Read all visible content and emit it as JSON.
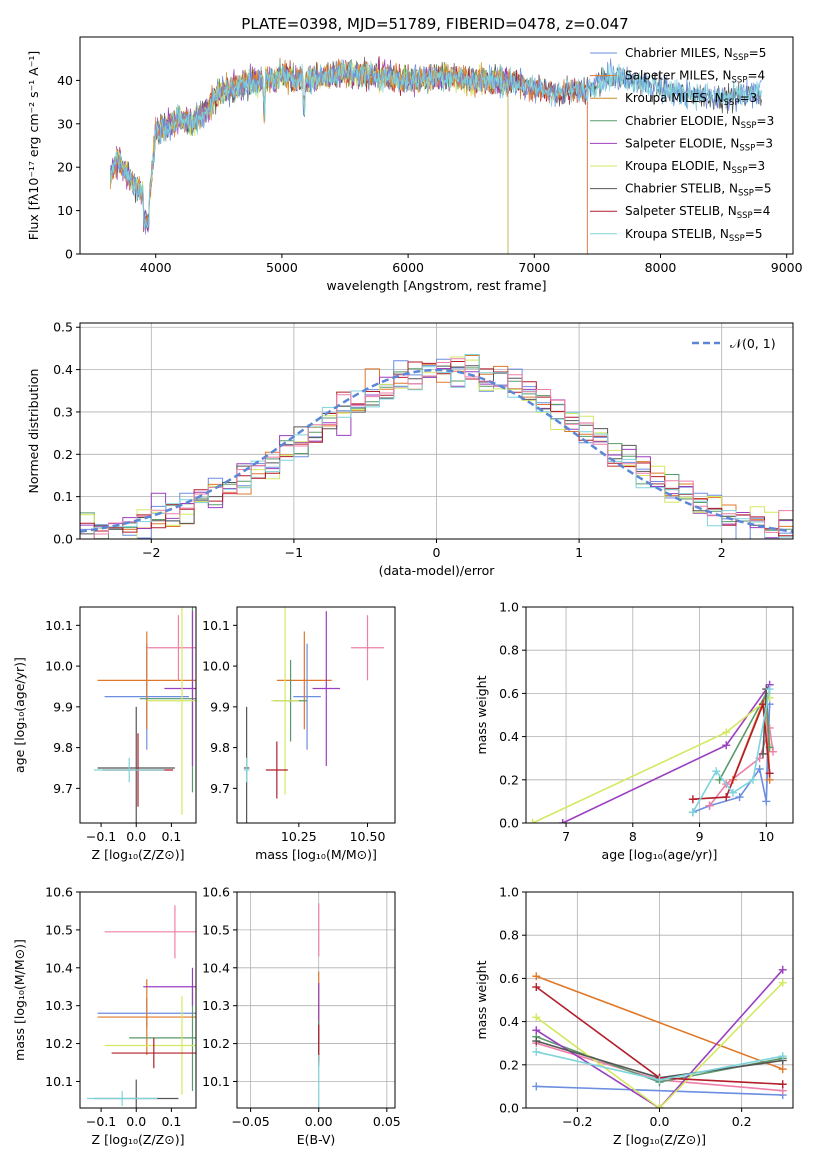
{
  "colors": {
    "palette": [
      "#6b8ee0",
      "#e0782a",
      "#c88a2e",
      "#5a9a6a",
      "#9b3fc0",
      "#d4e860",
      "#555555",
      "#b21e2a",
      "#7fd4dc"
    ],
    "extra": [
      "#ee7fa8"
    ],
    "normal_curve": "#5b87d6"
  },
  "chart_data": [
    {
      "type": "line",
      "title": "PLATE=0398, MJD=51789, FIBERID=0478, z=0.047",
      "xlabel": "wavelength [Angstrom, rest frame]",
      "ylabel": "Flux [fλ10⁻¹⁷ erg cm⁻² s⁻¹ A⁻¹]",
      "xlim": [
        3400,
        9050
      ],
      "ylim": [
        0,
        50
      ],
      "xticks": [
        4000,
        5000,
        6000,
        7000,
        8000,
        9000
      ],
      "yticks": [
        0,
        10,
        20,
        30,
        40
      ],
      "legend": "top-right",
      "series": [
        {
          "name": "Chabrier MILES, Nₛₚₚ=5",
          "legend_main": "Chabrier MILES, N",
          "legend_sub": "SSP",
          "legend_tail": "=5",
          "x_range": [
            3640,
            8800
          ]
        },
        {
          "name": "Salpeter MILES, Nₛₚₚ=4",
          "legend_main": "Salpeter MILES, N",
          "legend_sub": "SSP",
          "legend_tail": "=4",
          "x_range": [
            3640,
            7420
          ]
        },
        {
          "name": "Kroupa MILES, Nₛₚₚ=3",
          "legend_main": "Kroupa MILES, N",
          "legend_sub": "SSP",
          "legend_tail": "=3",
          "x_range": [
            3640,
            6790
          ]
        },
        {
          "name": "Chabrier ELODIE, Nₛₚₚ=3",
          "legend_main": "Chabrier ELODIE, N",
          "legend_sub": "SSP",
          "legend_tail": "=3",
          "x_range": [
            3640,
            6790
          ]
        },
        {
          "name": "Salpeter ELODIE, Nₛₚₚ=3",
          "legend_main": "Salpeter ELODIE, N",
          "legend_sub": "SSP",
          "legend_tail": "=3",
          "x_range": [
            3640,
            6790
          ]
        },
        {
          "name": "Kroupa ELODIE, Nₛₚₚ=3",
          "legend_main": "Kroupa ELODIE, N",
          "legend_sub": "SSP",
          "legend_tail": "=3",
          "x_range": [
            3640,
            6790
          ]
        },
        {
          "name": "Chabrier STELIB, Nₛₚₚ=5",
          "legend_main": "Chabrier STELIB, N",
          "legend_sub": "SSP",
          "legend_tail": "=5",
          "x_range": [
            3640,
            8800
          ]
        },
        {
          "name": "Salpeter STELIB, Nₛₚₚ=4",
          "legend_main": "Salpeter STELIB, N",
          "legend_sub": "SSP",
          "legend_tail": "=4",
          "x_range": [
            3640,
            7420
          ]
        },
        {
          "name": "Kroupa STELIB, Nₛₚₚ=5",
          "legend_main": "Kroupa STELIB, N",
          "legend_sub": "SSP",
          "legend_tail": "=5",
          "x_range": [
            3640,
            8800
          ]
        }
      ],
      "continuum": {
        "wavelength": [
          3640,
          3700,
          3800,
          3900,
          3950,
          4000,
          4100,
          4200,
          4300,
          4400,
          4500,
          4700,
          5000,
          5200,
          5500,
          5800,
          6000,
          6300,
          6500,
          6700,
          6900,
          7000,
          7200,
          7400,
          7600,
          7800,
          8000,
          8200,
          8500,
          8800
        ],
        "flux": [
          18,
          22,
          17,
          14,
          13,
          28,
          30,
          31,
          30,
          33,
          37,
          39,
          41,
          40,
          42,
          41,
          40,
          41,
          40,
          40,
          39,
          38,
          37,
          38,
          41,
          40,
          38,
          37,
          36,
          37
        ]
      }
    },
    {
      "type": "line",
      "xlabel": "(data-model)/error",
      "ylabel": "Normed distribution",
      "xlim": [
        -2.5,
        2.5
      ],
      "ylim": [
        0,
        0.51
      ],
      "xticks": [
        -2,
        -1,
        0,
        1,
        2
      ],
      "yticks": [
        0.0,
        0.1,
        0.2,
        0.3,
        0.4,
        0.5
      ],
      "grid": true,
      "legend": "top-right",
      "normal_curve": {
        "label": "𝒩(0, 1)",
        "mean": 0,
        "sd": 1
      },
      "histogram_bin_width": 0.1,
      "histogram_centers": [
        -2.45,
        -2.35,
        -2.25,
        -2.15,
        -2.05,
        -1.95,
        -1.85,
        -1.75,
        -1.65,
        -1.55,
        -1.45,
        -1.35,
        -1.25,
        -1.15,
        -1.05,
        -0.95,
        -0.85,
        -0.75,
        -0.65,
        -0.55,
        -0.45,
        -0.35,
        -0.25,
        -0.15,
        -0.05,
        0.05,
        0.15,
        0.25,
        0.35,
        0.45,
        0.55,
        0.65,
        0.75,
        0.85,
        0.95,
        1.05,
        1.15,
        1.25,
        1.35,
        1.45,
        1.55,
        1.65,
        1.75,
        1.85,
        1.95,
        2.05,
        2.15,
        2.25,
        2.35,
        2.45
      ]
    },
    {
      "type": "scatter",
      "xlabel": "Z [log₁₀(Z/Z⊙)]",
      "ylabel": "age  [log₁₀(age/yr)]",
      "xlim": [
        -0.16,
        0.17
      ],
      "ylim": [
        9.615,
        10.145
      ],
      "xticks": [
        -0.1,
        0.0,
        0.1
      ],
      "yticks": [
        9.7,
        9.8,
        9.9,
        10.0,
        10.1
      ],
      "points": [
        {
          "x": 0.03,
          "y": 9.925,
          "xerr": 0.12,
          "yerr": 0.13,
          "color": 0
        },
        {
          "x": 0.03,
          "y": 9.965,
          "xerr": 0.14,
          "yerr": 0.12,
          "color": 1
        },
        {
          "x": 0.12,
          "y": 10.045,
          "xerr": 0.09,
          "yerr": 0.08,
          "color": 9
        },
        {
          "x": 0.16,
          "y": 9.92,
          "xerr": 0.15,
          "yerr": 0.23,
          "color": 3
        },
        {
          "x": 0.16,
          "y": 9.945,
          "xerr": 0.08,
          "yerr": 0.19,
          "color": 4
        },
        {
          "x": 0.13,
          "y": 9.915,
          "xerr": 0.1,
          "yerr": 0.28,
          "color": 5
        },
        {
          "x": 0.0,
          "y": 9.75,
          "xerr": 0.11,
          "yerr": 0.15,
          "color": 6
        },
        {
          "x": 0.005,
          "y": 9.745,
          "xerr": 0.1,
          "yerr": 0.09,
          "color": 7
        },
        {
          "x": -0.02,
          "y": 9.745,
          "xerr": 0.1,
          "yerr": 0.03,
          "color": 8
        }
      ]
    },
    {
      "type": "scatter",
      "xlabel": "mass [log₁₀(M/M⊙)]",
      "ylabel": "",
      "xlim": [
        10.025,
        10.6
      ],
      "ylim": [
        9.615,
        10.145
      ],
      "xticks": [
        10.25,
        10.5
      ],
      "yticks": [
        9.7,
        9.8,
        9.9,
        10.0,
        10.1
      ],
      "points": [
        {
          "x": 10.28,
          "y": 9.925,
          "xerr": 0.05,
          "yerr": 0.13,
          "color": 0
        },
        {
          "x": 10.27,
          "y": 9.965,
          "xerr": 0.1,
          "yerr": 0.12,
          "color": 1
        },
        {
          "x": 10.5,
          "y": 10.045,
          "xerr": 0.06,
          "yerr": 0.08,
          "color": 9
        },
        {
          "x": 10.22,
          "y": 9.915,
          "xerr": 0.06,
          "yerr": 0.1,
          "color": 3
        },
        {
          "x": 10.35,
          "y": 9.945,
          "xerr": 0.05,
          "yerr": 0.19,
          "color": 4
        },
        {
          "x": 10.2,
          "y": 9.915,
          "xerr": 0.05,
          "yerr": 0.23,
          "color": 5
        },
        {
          "x": 10.06,
          "y": 9.75,
          "xerr": 0.01,
          "yerr": 0.15,
          "color": 6
        },
        {
          "x": 10.17,
          "y": 9.745,
          "xerr": 0.04,
          "yerr": 0.07,
          "color": 7
        },
        {
          "x": 10.06,
          "y": 9.745,
          "xerr": 0.01,
          "yerr": 0.03,
          "color": 8
        }
      ]
    },
    {
      "type": "line",
      "xlabel": "age  [log₁₀(age/yr)]",
      "ylabel": "mass weight",
      "xlim": [
        6.4,
        10.4
      ],
      "ylim": [
        0,
        1.0
      ],
      "xticks": [
        7,
        8,
        9,
        10
      ],
      "yticks": [
        0.0,
        0.2,
        0.4,
        0.6,
        0.8,
        1.0
      ],
      "grid": true,
      "series": [
        {
          "color": 0,
          "x": [
            8.9,
            9.15,
            9.6,
            9.9,
            10.0,
            10.05
          ],
          "y": [
            0.05,
            0.08,
            0.12,
            0.25,
            0.1,
            0.55
          ]
        },
        {
          "color": 1,
          "x": [
            9.5,
            10.0,
            10.05
          ],
          "y": [
            0.2,
            0.6,
            0.2
          ]
        },
        {
          "color": 9,
          "x": [
            9.15,
            9.4,
            9.9,
            10.05,
            10.1
          ],
          "y": [
            0.08,
            0.18,
            0.3,
            0.44,
            0.33
          ]
        },
        {
          "color": 3,
          "x": [
            9.3,
            10.0,
            10.05
          ],
          "y": [
            0.2,
            0.6,
            0.35
          ]
        },
        {
          "color": 4,
          "x": [
            6.95,
            9.4,
            10.05
          ],
          "y": [
            0.0,
            0.36,
            0.64
          ]
        },
        {
          "color": 5,
          "x": [
            6.5,
            9.4,
            10.05
          ],
          "y": [
            0.0,
            0.42,
            0.58
          ]
        },
        {
          "color": 6,
          "x": [
            9.95,
            10.0
          ],
          "y": [
            0.32,
            0.62
          ]
        },
        {
          "color": 7,
          "x": [
            8.9,
            9.4,
            9.95,
            10.05
          ],
          "y": [
            0.11,
            0.12,
            0.55,
            0.23
          ]
        },
        {
          "color": 8,
          "x": [
            8.9,
            9.25,
            9.5,
            9.8,
            10.05
          ],
          "y": [
            0.05,
            0.24,
            0.14,
            0.2,
            0.62
          ]
        }
      ]
    },
    {
      "type": "scatter",
      "xlabel": "Z [log₁₀(Z/Z⊙)]",
      "ylabel": "mass [log₁₀(M/M⊙)]",
      "xlim": [
        -0.16,
        0.17
      ],
      "ylim": [
        10.03,
        10.6
      ],
      "xticks": [
        -0.1,
        0.0,
        0.1
      ],
      "yticks": [
        10.1,
        10.2,
        10.3,
        10.4,
        10.5,
        10.6
      ],
      "points": [
        {
          "x": 0.03,
          "y": 10.28,
          "xerr": 0.14,
          "yerr": 0.04,
          "color": 0
        },
        {
          "x": 0.03,
          "y": 10.27,
          "xerr": 0.14,
          "yerr": 0.1,
          "color": 1
        },
        {
          "x": 0.11,
          "y": 10.495,
          "xerr": 0.2,
          "yerr": 0.07,
          "color": 9
        },
        {
          "x": 0.16,
          "y": 10.215,
          "xerr": 0.18,
          "yerr": 0.14,
          "color": 3
        },
        {
          "x": 0.16,
          "y": 10.35,
          "xerr": 0.14,
          "yerr": 0.05,
          "color": 4
        },
        {
          "x": 0.13,
          "y": 10.195,
          "xerr": 0.22,
          "yerr": 0.13,
          "color": 5
        },
        {
          "x": 0.0,
          "y": 10.055,
          "xerr": 0.12,
          "yerr": 0.05,
          "color": 6
        },
        {
          "x": 0.05,
          "y": 10.175,
          "xerr": 0.12,
          "yerr": 0.04,
          "color": 7
        },
        {
          "x": -0.04,
          "y": 10.055,
          "xerr": 0.1,
          "yerr": 0.02,
          "color": 8
        }
      ]
    },
    {
      "type": "scatter",
      "xlabel": "E(B-V)",
      "ylabel": "",
      "xlim": [
        -0.06,
        0.056
      ],
      "ylim": [
        10.03,
        10.6
      ],
      "xticks": [
        -0.05,
        0.0,
        0.05
      ],
      "yticks": [
        10.1,
        10.2,
        10.3,
        10.4,
        10.5,
        10.6
      ],
      "grid": true,
      "points": [
        {
          "x": 0.0,
          "y": 10.5,
          "xerr": 0,
          "yerr": 0.07,
          "color": 9
        },
        {
          "x": 0.0,
          "y": 10.3,
          "xerr": 0,
          "yerr": 0.09,
          "color": 1
        },
        {
          "x": 0.0,
          "y": 10.28,
          "xerr": 0,
          "yerr": 0.08,
          "color": 4
        },
        {
          "x": 0.0,
          "y": 10.2,
          "xerr": 0,
          "yerr": 0.06,
          "color": 3
        },
        {
          "x": 0.0,
          "y": 10.2,
          "xerr": 0,
          "yerr": 0.05,
          "color": 7
        },
        {
          "x": 0.0,
          "y": 10.1,
          "xerr": 0,
          "yerr": 0.07,
          "color": 8
        }
      ]
    },
    {
      "type": "line",
      "xlabel": "Z [log₁₀(Z/Z⊙)]",
      "ylabel": "mass weight",
      "xlim": [
        -0.325,
        0.325
      ],
      "ylim": [
        0,
        1.0
      ],
      "xticks": [
        -0.2,
        0.0,
        0.2
      ],
      "yticks": [
        0.0,
        0.2,
        0.4,
        0.6,
        0.8,
        1.0
      ],
      "grid": true,
      "series": [
        {
          "color": 0,
          "x": [
            -0.3,
            0.3
          ],
          "y": [
            0.1,
            0.06
          ]
        },
        {
          "color": 1,
          "x": [
            -0.3,
            0.3
          ],
          "y": [
            0.61,
            0.18
          ]
        },
        {
          "color": 9,
          "x": [
            -0.3,
            0.0,
            0.3
          ],
          "y": [
            0.3,
            0.13,
            0.08
          ]
        },
        {
          "color": 3,
          "x": [
            -0.3,
            0.0,
            0.3
          ],
          "y": [
            0.33,
            0.12,
            0.23
          ]
        },
        {
          "color": 4,
          "x": [
            -0.3,
            0.0,
            0.3
          ],
          "y": [
            0.36,
            0.0,
            0.64
          ]
        },
        {
          "color": 5,
          "x": [
            -0.3,
            0.0,
            0.3
          ],
          "y": [
            0.42,
            0.0,
            0.58
          ]
        },
        {
          "color": 6,
          "x": [
            -0.3,
            0.0,
            0.3
          ],
          "y": [
            0.31,
            0.14,
            0.22
          ]
        },
        {
          "color": 7,
          "x": [
            -0.3,
            0.0,
            0.3
          ],
          "y": [
            0.56,
            0.14,
            0.11
          ]
        },
        {
          "color": 8,
          "x": [
            -0.3,
            0.0,
            0.3
          ],
          "y": [
            0.26,
            0.13,
            0.24
          ]
        }
      ]
    }
  ]
}
